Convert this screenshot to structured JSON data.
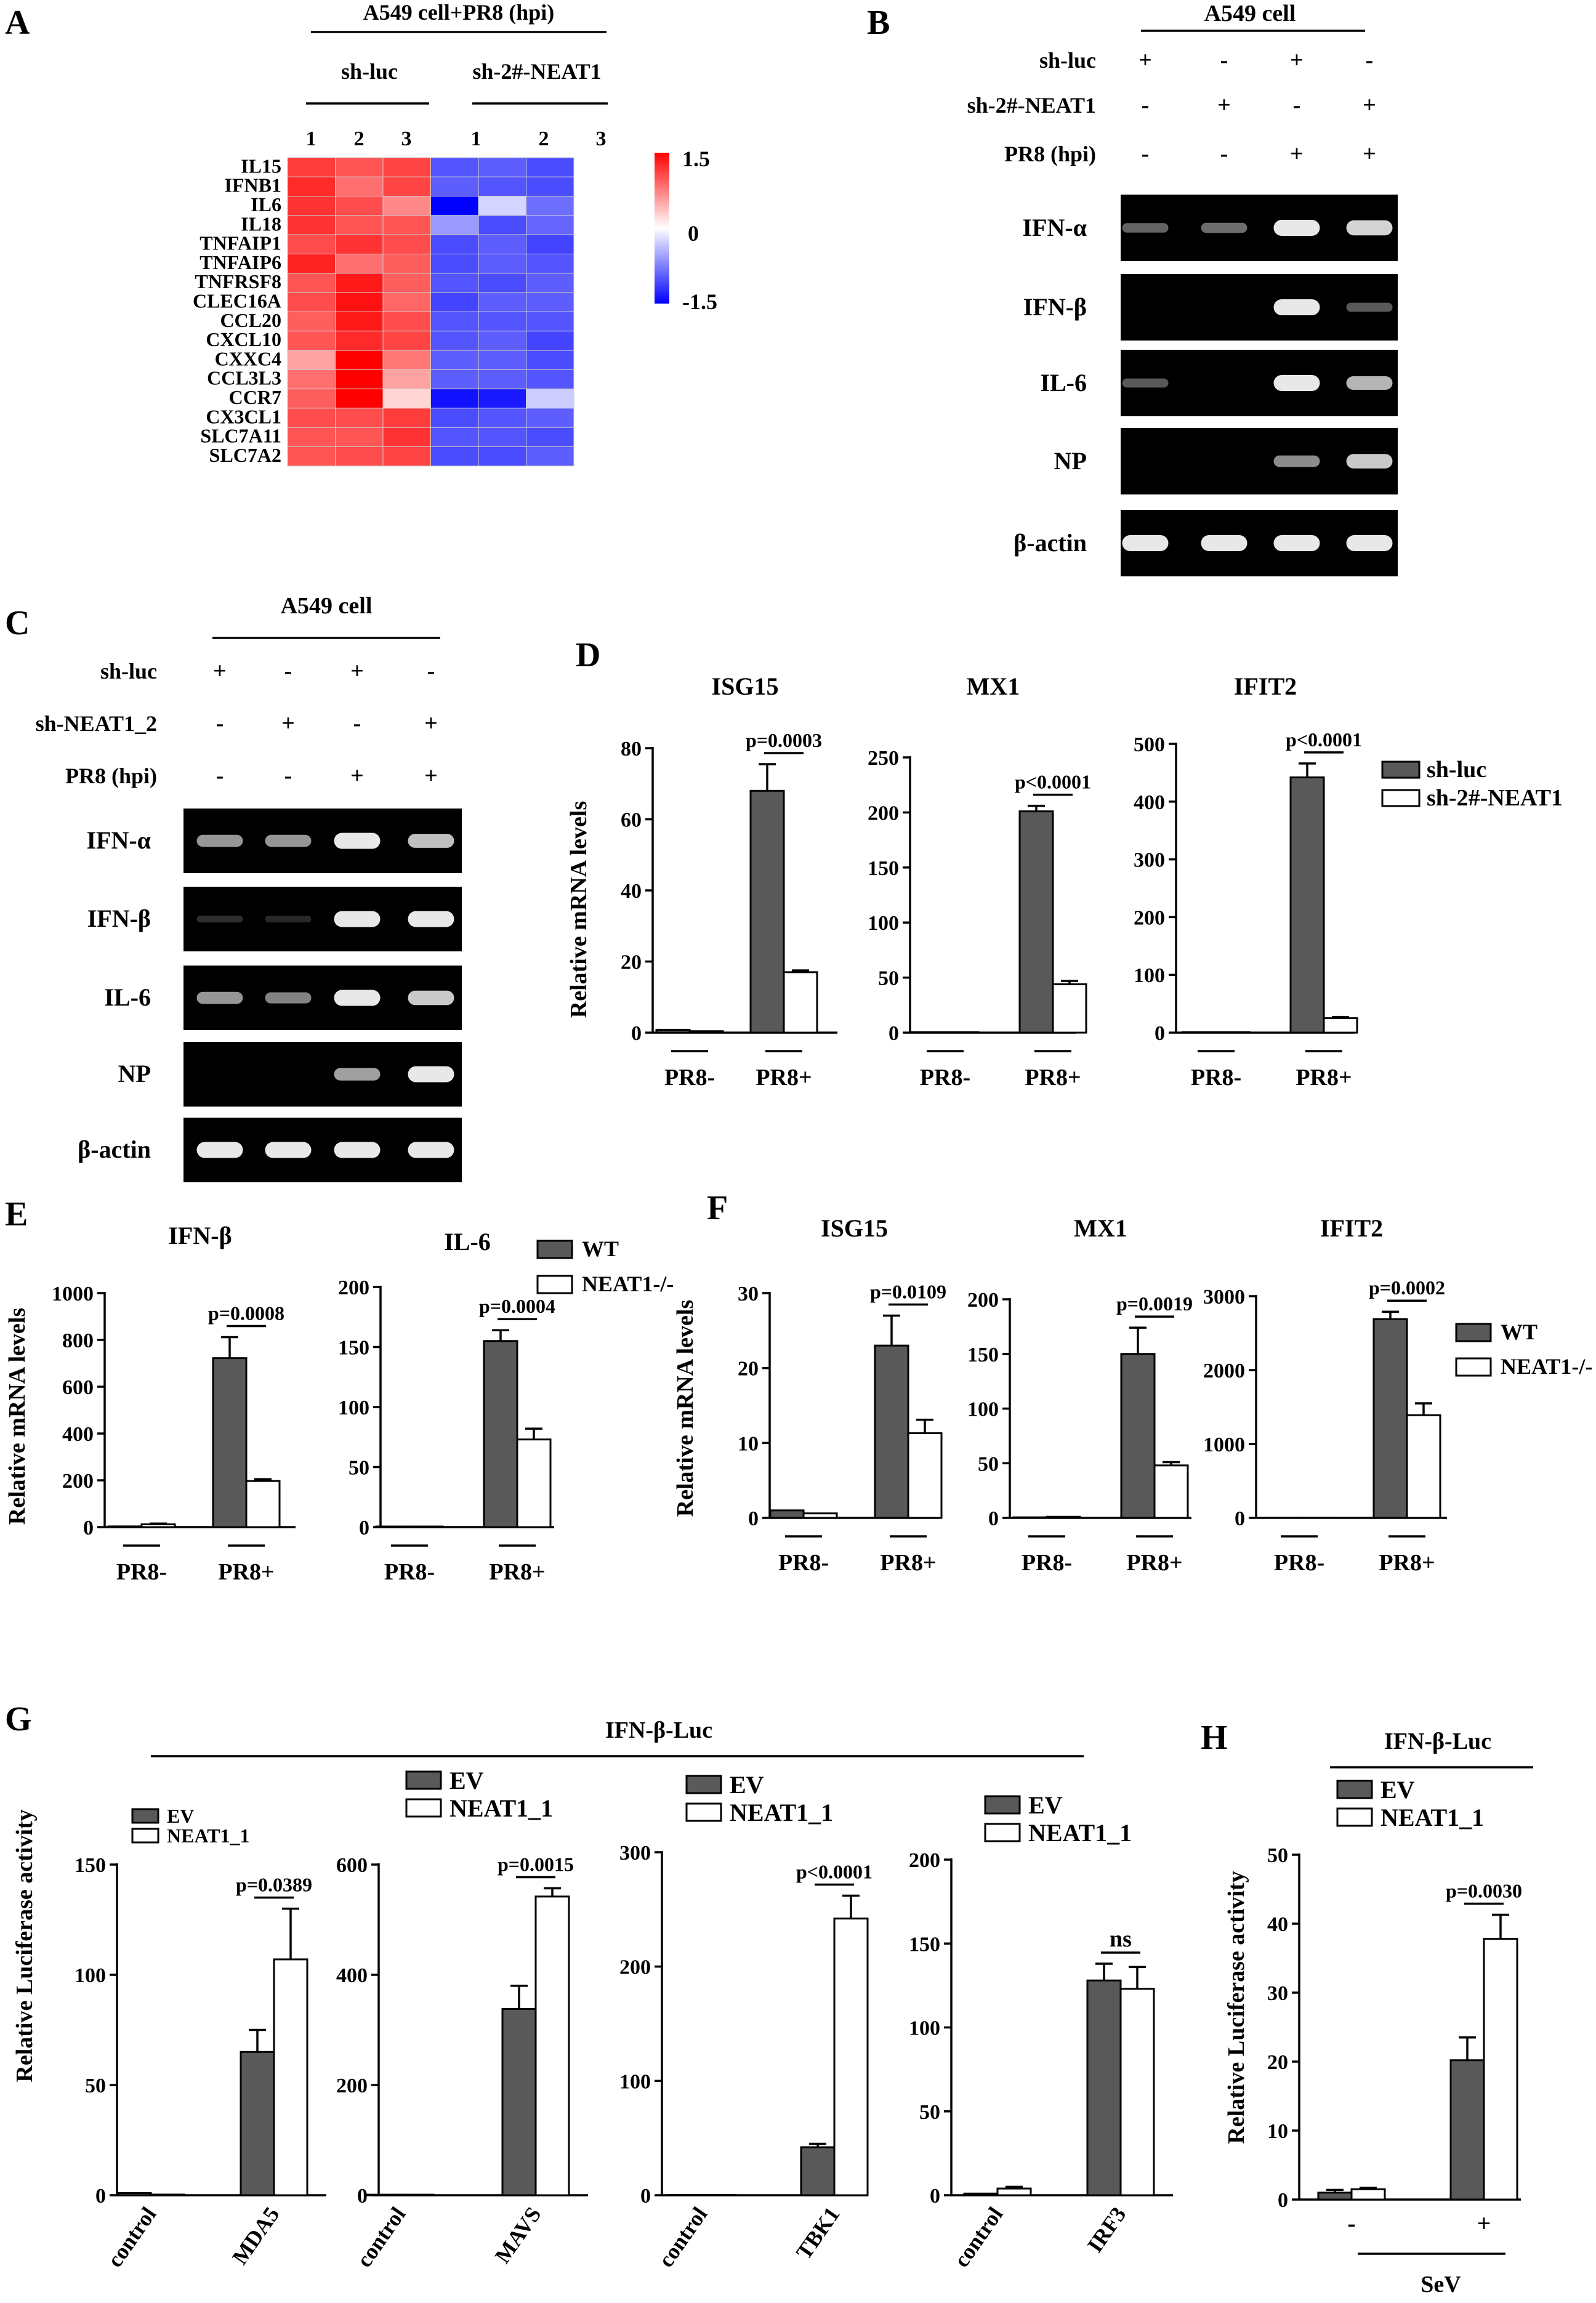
{
  "colors": {
    "dark_bar": "#595959",
    "light_bar": "#ffffff",
    "heat_high": "#ff0000",
    "heat_mid": "#ffffff",
    "heat_low": "#0000ff",
    "gel_bg": "#000000",
    "band": "#e8e8e8"
  },
  "panels": {
    "A": {
      "letter": "A",
      "header": "A549 cell+PR8 (hpi)",
      "group_labels": [
        "sh-luc",
        "sh-2#-NEAT1"
      ],
      "replicates": [
        "1",
        "2",
        "3",
        "1",
        "2",
        "3"
      ],
      "genes": [
        "IL15",
        "IFNB1",
        "IL6",
        "IL18",
        "TNFAIP1",
        "TNFAIP6",
        "TNFRSF8",
        "CLEC16A",
        "CCL20",
        "CXCL10",
        "CXXC4",
        "CCL3L3",
        "CCR7",
        "CX3CL1",
        "SLC7A11",
        "SLC7A2"
      ],
      "scale_ticks": [
        "1.5",
        "0",
        "-1.5"
      ],
      "matrix": [
        [
          1.15,
          1.0,
          1.1,
          -1.0,
          -0.95,
          -1.05
        ],
        [
          1.25,
          0.85,
          1.1,
          -0.95,
          -1.0,
          -1.05
        ],
        [
          1.2,
          1.05,
          0.7,
          -1.6,
          -0.25,
          -0.85
        ],
        [
          1.2,
          1.0,
          1.0,
          -0.6,
          -1.05,
          -0.9
        ],
        [
          1.05,
          1.2,
          1.05,
          -1.05,
          -0.95,
          -1.1
        ],
        [
          1.3,
          0.85,
          0.95,
          -1.05,
          -0.95,
          -1.0
        ],
        [
          1.0,
          1.35,
          0.95,
          -1.0,
          -1.05,
          -0.95
        ],
        [
          1.05,
          1.4,
          0.9,
          -1.1,
          -0.95,
          -0.95
        ],
        [
          0.95,
          1.35,
          1.05,
          -1.0,
          -1.0,
          -1.0
        ],
        [
          1.0,
          1.25,
          1.1,
          -1.0,
          -0.95,
          -1.1
        ],
        [
          0.55,
          1.55,
          0.8,
          -0.95,
          -0.95,
          -1.05
        ],
        [
          0.85,
          1.55,
          0.55,
          -0.95,
          -0.95,
          -1.0
        ],
        [
          0.95,
          1.55,
          0.25,
          -1.4,
          -1.35,
          -0.3
        ],
        [
          1.05,
          1.05,
          1.15,
          -1.05,
          -1.0,
          -0.95
        ],
        [
          1.0,
          1.0,
          1.2,
          -1.0,
          -1.0,
          -1.05
        ],
        [
          1.0,
          1.05,
          1.1,
          -1.05,
          -1.05,
          -0.95
        ]
      ]
    },
    "B": {
      "letter": "B",
      "header": "A549 cell",
      "conditions": [
        {
          "label": "sh-luc",
          "signs": [
            "+",
            "-",
            "+",
            "-"
          ]
        },
        {
          "label": "sh-2#-NEAT1",
          "signs": [
            "-",
            "+",
            "-",
            "+"
          ]
        },
        {
          "label": "PR8 (hpi)",
          "signs": [
            "-",
            "-",
            "+",
            "+"
          ]
        }
      ],
      "gels": [
        {
          "label": "IFN-α",
          "bands": [
            0.35,
            0.4,
            1.0,
            0.9
          ]
        },
        {
          "label": "IFN-β",
          "bands": [
            0,
            0,
            1.0,
            0.3
          ]
        },
        {
          "label": "IL-6",
          "bands": [
            0.3,
            0,
            1.0,
            0.75
          ]
        },
        {
          "label": "NP",
          "bands": [
            0,
            0,
            0.55,
            0.85
          ]
        },
        {
          "label": "β-actin",
          "bands": [
            1,
            1,
            1,
            1
          ]
        }
      ]
    },
    "C": {
      "letter": "C",
      "header": "A549 cell",
      "conditions": [
        {
          "label": "sh-luc",
          "signs": [
            "+",
            "-",
            "+",
            "-"
          ]
        },
        {
          "label": "sh-NEAT1_2",
          "signs": [
            "-",
            "+",
            "-",
            "+"
          ]
        },
        {
          "label": "PR8 (hpi)",
          "signs": [
            "-",
            "-",
            "+",
            "+"
          ]
        }
      ],
      "gels": [
        {
          "label": "IFN-α",
          "bands": [
            0.6,
            0.6,
            1.0,
            0.8
          ]
        },
        {
          "label": "IFN-β",
          "bands": [
            0.08,
            0.06,
            1.0,
            1.0
          ]
        },
        {
          "label": "IL-6",
          "bands": [
            0.6,
            0.5,
            1.0,
            0.85
          ]
        },
        {
          "label": "NP",
          "bands": [
            0,
            0,
            0.65,
            1.0
          ]
        },
        {
          "label": "β-actin",
          "bands": [
            1,
            1,
            1,
            1
          ]
        }
      ]
    },
    "D": {
      "letter": "D",
      "ylabel": "Relative mRNA levels",
      "legend": [
        "sh-luc",
        "sh-2#-NEAT1"
      ]
    },
    "E": {
      "letter": "E",
      "ylabel": "Relative mRNA levels",
      "legend": [
        "WT",
        "NEAT1-/-"
      ]
    },
    "F": {
      "letter": "F",
      "ylabel": "Relative mRNA levels",
      "legend": [
        "WT",
        "NEAT1-/-"
      ]
    },
    "G": {
      "letter": "G",
      "header": "IFN-β-Luc",
      "ylabel": "Relative Luciferase activity"
    },
    "H": {
      "letter": "H",
      "header": "IFN-β-Luc",
      "ylabel": "Relative Luciferase activity",
      "xlabel": "SeV"
    }
  },
  "chart_data": [
    {
      "id": "D1",
      "type": "bar",
      "title": "ISG15",
      "categories": [
        "PR8-",
        "PR8+"
      ],
      "series": [
        {
          "name": "sh-luc",
          "values": [
            0.8,
            68
          ],
          "errors": [
            0,
            7.5
          ]
        },
        {
          "name": "sh-2#-NEAT1",
          "values": [
            0.4,
            17
          ],
          "errors": [
            0,
            0.5
          ]
        }
      ],
      "ylim": [
        0,
        80
      ],
      "ticks": [
        0,
        20,
        40,
        60,
        80
      ],
      "annotations": [
        {
          "text": "p=0.0003",
          "group": 1
        }
      ]
    },
    {
      "id": "D2",
      "type": "bar",
      "title": "MX1",
      "categories": [
        "PR8-",
        "PR8+"
      ],
      "series": [
        {
          "name": "sh-luc",
          "values": [
            0.5,
            201
          ],
          "errors": [
            0,
            5
          ]
        },
        {
          "name": "sh-2#-NEAT1",
          "values": [
            0.5,
            44
          ],
          "errors": [
            0,
            3
          ]
        }
      ],
      "ylim": [
        0,
        250
      ],
      "ticks": [
        0,
        50,
        100,
        150,
        200,
        250
      ],
      "annotations": [
        {
          "text": "p<0.0001",
          "group": 1
        }
      ]
    },
    {
      "id": "D3",
      "type": "bar",
      "title": "IFIT2",
      "categories": [
        "PR8-",
        "PR8+"
      ],
      "series": [
        {
          "name": "sh-luc",
          "values": [
            1,
            442
          ],
          "errors": [
            0,
            24
          ]
        },
        {
          "name": "sh-2#-NEAT1",
          "values": [
            1,
            25
          ],
          "errors": [
            0,
            2
          ]
        }
      ],
      "ylim": [
        0,
        500
      ],
      "ticks": [
        0,
        100,
        200,
        300,
        400,
        500
      ],
      "annotations": [
        {
          "text": "p<0.0001",
          "group": 1
        }
      ]
    },
    {
      "id": "E1",
      "type": "bar",
      "title": "IFN-β",
      "categories": [
        "PR8-",
        "PR8+"
      ],
      "series": [
        {
          "name": "WT",
          "values": [
            3,
            722
          ],
          "errors": [
            0,
            90
          ]
        },
        {
          "name": "NEAT1-/-",
          "values": [
            12,
            197
          ],
          "errors": [
            3,
            8
          ]
        }
      ],
      "ylim": [
        0,
        1000
      ],
      "ticks": [
        0,
        200,
        400,
        600,
        800,
        1000
      ],
      "annotations": [
        {
          "text": "p=0.0008",
          "group": 1
        }
      ]
    },
    {
      "id": "E2",
      "type": "bar",
      "title": "IL-6",
      "categories": [
        "PR8-",
        "PR8+"
      ],
      "series": [
        {
          "name": "WT",
          "values": [
            0.5,
            155
          ],
          "errors": [
            0,
            9
          ]
        },
        {
          "name": "NEAT1-/-",
          "values": [
            0.5,
            73
          ],
          "errors": [
            0,
            9
          ]
        }
      ],
      "ylim": [
        0,
        200
      ],
      "ticks": [
        0,
        50,
        100,
        150,
        200
      ],
      "annotations": [
        {
          "text": "p=0.0004",
          "group": 1
        }
      ]
    },
    {
      "id": "F1",
      "type": "bar",
      "title": "ISG15",
      "categories": [
        "PR8-",
        "PR8+"
      ],
      "series": [
        {
          "name": "WT",
          "values": [
            1,
            23
          ],
          "errors": [
            0,
            4
          ]
        },
        {
          "name": "NEAT1-/-",
          "values": [
            0.6,
            11.3
          ],
          "errors": [
            0,
            1.8
          ]
        }
      ],
      "ylim": [
        0,
        30
      ],
      "ticks": [
        0,
        10,
        20,
        30
      ],
      "annotations": [
        {
          "text": "p=0.0109",
          "group": 1
        }
      ]
    },
    {
      "id": "F2",
      "type": "bar",
      "title": "MX1",
      "categories": [
        "PR8-",
        "PR8+"
      ],
      "series": [
        {
          "name": "WT",
          "values": [
            0.5,
            150
          ],
          "errors": [
            0,
            24
          ]
        },
        {
          "name": "NEAT1-/-",
          "values": [
            1,
            48
          ],
          "errors": [
            0,
            3
          ]
        }
      ],
      "ylim": [
        0,
        200
      ],
      "ticks": [
        0,
        50,
        100,
        150,
        200
      ],
      "annotations": [
        {
          "text": "p=0.0019",
          "group": 1
        }
      ]
    },
    {
      "id": "F3",
      "type": "bar",
      "title": "IFIT2",
      "categories": [
        "PR8-",
        "PR8+"
      ],
      "series": [
        {
          "name": "WT",
          "values": [
            1,
            2690
          ],
          "errors": [
            0,
            100
          ]
        },
        {
          "name": "NEAT1-/-",
          "values": [
            1,
            1390
          ],
          "errors": [
            0,
            160
          ]
        }
      ],
      "ylim": [
        0,
        3000
      ],
      "ticks": [
        0,
        1000,
        2000,
        3000
      ],
      "annotations": [
        {
          "text": "p=0.0002",
          "group": 1
        }
      ]
    },
    {
      "id": "G1",
      "type": "bar",
      "title": "",
      "legend": [
        "EV",
        "NEAT1_1"
      ],
      "categories": [
        "control",
        "MDA5"
      ],
      "series": [
        {
          "name": "EV",
          "values": [
            1,
            65
          ],
          "errors": [
            0,
            10
          ]
        },
        {
          "name": "NEAT1_1",
          "values": [
            0.3,
            107
          ],
          "errors": [
            0,
            23
          ]
        }
      ],
      "ylim": [
        0,
        150
      ],
      "ticks": [
        0,
        50,
        100,
        150
      ],
      "annotations": [
        {
          "text": "p=0.0389",
          "group": 1
        }
      ]
    },
    {
      "id": "G2",
      "type": "bar",
      "title": "",
      "legend": [
        "EV",
        "NEAT1_1"
      ],
      "categories": [
        "control",
        "MAVS"
      ],
      "series": [
        {
          "name": "EV",
          "values": [
            1,
            338
          ],
          "errors": [
            0,
            42
          ]
        },
        {
          "name": "NEAT1_1",
          "values": [
            1,
            542
          ],
          "errors": [
            0,
            15
          ]
        }
      ],
      "ylim": [
        0,
        600
      ],
      "ticks": [
        0,
        200,
        400,
        600
      ],
      "annotations": [
        {
          "text": "p=0.0015",
          "group": 1
        }
      ]
    },
    {
      "id": "G3",
      "type": "bar",
      "title": "",
      "legend": [
        "EV",
        "NEAT1_1"
      ],
      "categories": [
        "control",
        "TBK1"
      ],
      "series": [
        {
          "name": "EV",
          "values": [
            0.3,
            42
          ],
          "errors": [
            0,
            3
          ]
        },
        {
          "name": "NEAT1_1",
          "values": [
            0.3,
            242
          ],
          "errors": [
            0,
            20
          ]
        }
      ],
      "ylim": [
        0,
        300
      ],
      "ticks": [
        0,
        100,
        200,
        300
      ],
      "annotations": [
        {
          "text": "p<0.0001",
          "group": 1
        }
      ]
    },
    {
      "id": "G4",
      "type": "bar",
      "title": "",
      "legend": [
        "EV",
        "NEAT1_1"
      ],
      "categories": [
        "control",
        "IRF3"
      ],
      "series": [
        {
          "name": "EV",
          "values": [
            1,
            128
          ],
          "errors": [
            0,
            10
          ]
        },
        {
          "name": "NEAT1_1",
          "values": [
            4,
            123
          ],
          "errors": [
            1,
            13
          ]
        }
      ],
      "ylim": [
        0,
        200
      ],
      "ticks": [
        0,
        50,
        100,
        150,
        200
      ],
      "annotations": [
        {
          "text": "ns",
          "group": 1
        }
      ]
    },
    {
      "id": "H1",
      "type": "bar",
      "title": "",
      "legend": [
        "EV",
        "NEAT1_1"
      ],
      "categories": [
        "-",
        "+"
      ],
      "series": [
        {
          "name": "EV",
          "values": [
            1,
            20.2
          ],
          "errors": [
            0.4,
            3.3
          ]
        },
        {
          "name": "NEAT1_1",
          "values": [
            1.5,
            37.8
          ],
          "errors": [
            0.2,
            3.5
          ]
        }
      ],
      "ylim": [
        0,
        50
      ],
      "ticks": [
        0,
        10,
        20,
        30,
        40,
        50
      ],
      "annotations": [
        {
          "text": "p=0.0030",
          "group": 1
        }
      ]
    }
  ]
}
